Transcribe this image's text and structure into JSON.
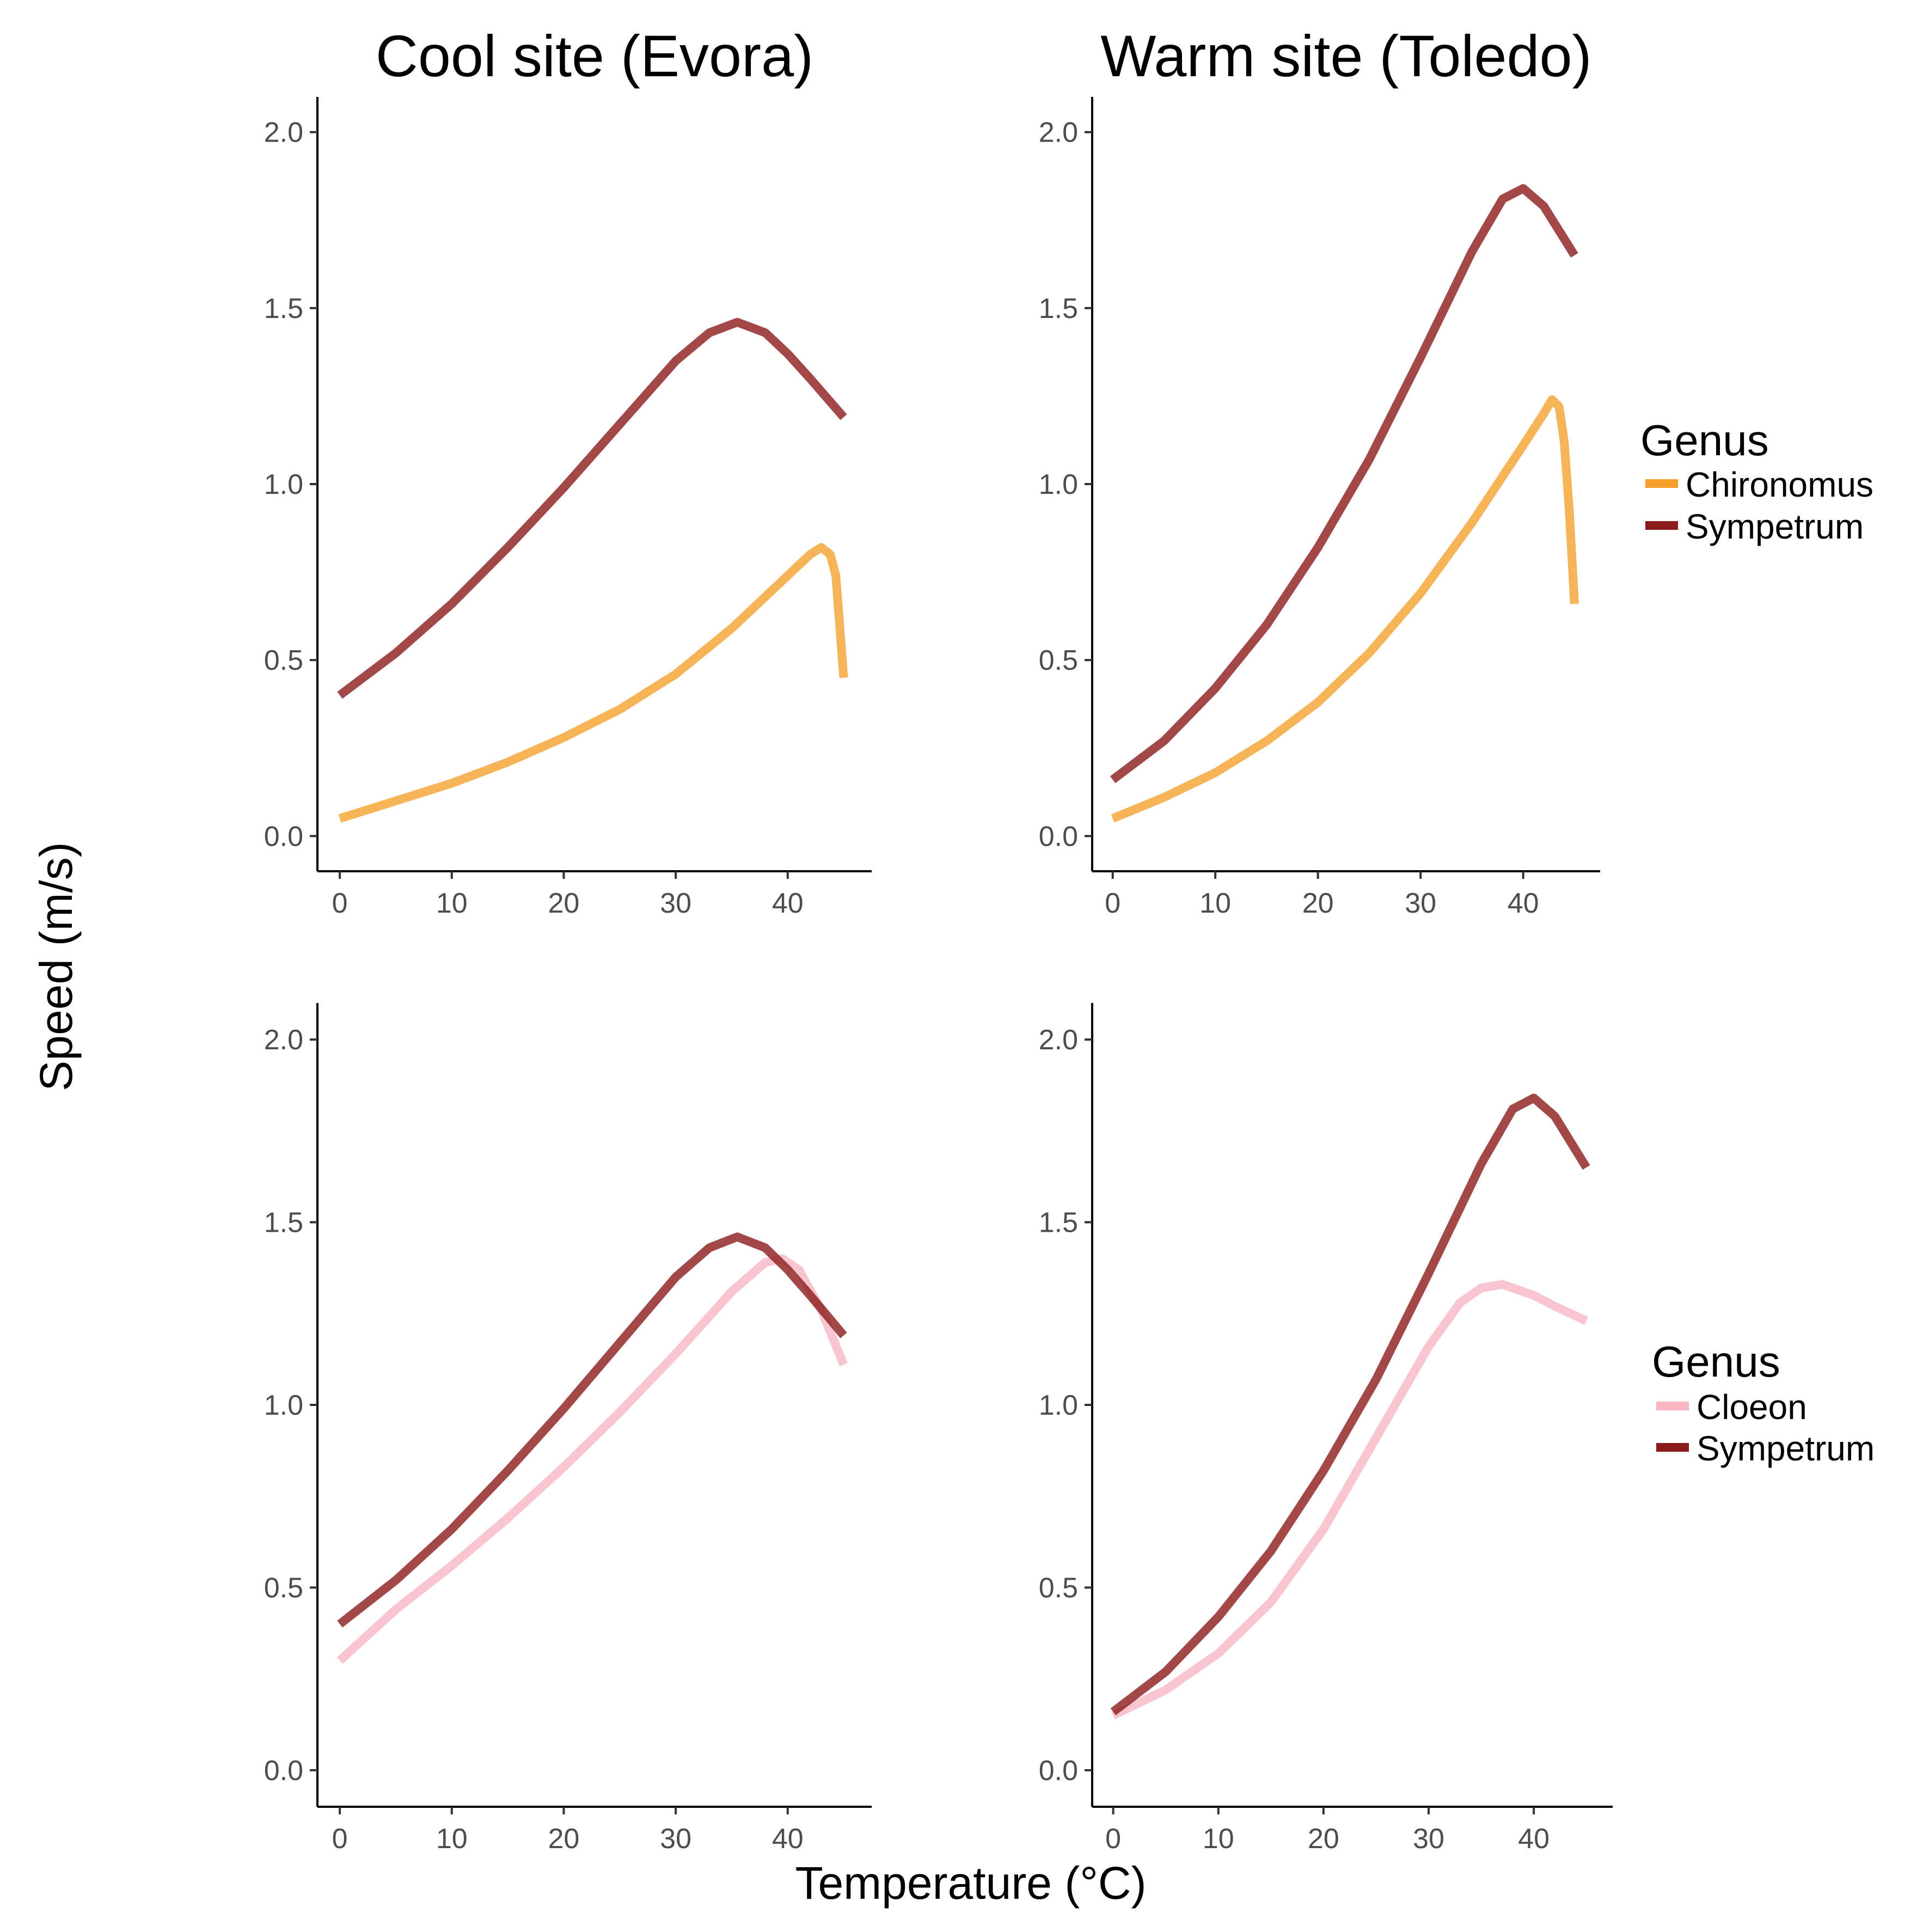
{
  "figure": {
    "ylabel": "Speed (m/s)",
    "xlabel": "Temperature (°C)"
  },
  "legends": [
    {
      "title": "Genus",
      "items": [
        {
          "label": "Chironomus",
          "color": "#f5a02e"
        },
        {
          "label": "Sympetrum",
          "color": "#8b1a1a"
        }
      ]
    },
    {
      "title": "Genus",
      "items": [
        {
          "label": "Cloeon",
          "color": "#f7b6c2"
        },
        {
          "label": "Sympetrum",
          "color": "#8b1a1a"
        }
      ]
    }
  ],
  "chart_data": [
    {
      "type": "line",
      "title": "Cool site (Evora)",
      "xlim": [
        -2,
        47.5
      ],
      "ylim": [
        -0.1,
        2.1
      ],
      "xticks": [
        "0",
        "10",
        "20",
        "30",
        "40"
      ],
      "yticks": [
        "0.0",
        "0.5",
        "1.0",
        "1.5",
        "2.0"
      ],
      "series": [
        {
          "name": "Chironomus",
          "color": "#f5a02e",
          "alpha": 0.8,
          "x": [
            0,
            5,
            10,
            15,
            20,
            25,
            30,
            35,
            40,
            42,
            43,
            43.8,
            44.3,
            45
          ],
          "y": [
            0.05,
            0.1,
            0.15,
            0.21,
            0.28,
            0.36,
            0.46,
            0.59,
            0.74,
            0.8,
            0.82,
            0.8,
            0.74,
            0.45
          ]
        },
        {
          "name": "Sympetrum",
          "color": "#8b1a1a",
          "alpha": 0.8,
          "x": [
            0,
            5,
            10,
            15,
            20,
            25,
            30,
            33,
            35.5,
            38,
            40,
            42,
            45
          ],
          "y": [
            0.4,
            0.52,
            0.66,
            0.82,
            0.99,
            1.17,
            1.35,
            1.43,
            1.46,
            1.43,
            1.37,
            1.3,
            1.19
          ]
        }
      ]
    },
    {
      "type": "line",
      "title": "Warm site (Toledo)",
      "xlim": [
        -2,
        47.5
      ],
      "ylim": [
        -0.1,
        2.1
      ],
      "xticks": [
        "0",
        "10",
        "20",
        "30",
        "40"
      ],
      "yticks": [
        "0.0",
        "0.5",
        "1.0",
        "1.5",
        "2.0"
      ],
      "series": [
        {
          "name": "Chironomus",
          "color": "#f5a02e",
          "alpha": 0.8,
          "x": [
            0,
            5,
            10,
            15,
            20,
            25,
            30,
            35,
            40,
            42,
            42.8,
            43.5,
            44,
            44.5,
            45
          ],
          "y": [
            0.05,
            0.11,
            0.18,
            0.27,
            0.38,
            0.52,
            0.69,
            0.89,
            1.11,
            1.2,
            1.24,
            1.22,
            1.12,
            0.92,
            0.66
          ]
        },
        {
          "name": "Sympetrum",
          "color": "#8b1a1a",
          "alpha": 0.8,
          "x": [
            0,
            5,
            10,
            15,
            20,
            25,
            30,
            35,
            38,
            40,
            42,
            45
          ],
          "y": [
            0.16,
            0.27,
            0.42,
            0.6,
            0.82,
            1.07,
            1.36,
            1.66,
            1.81,
            1.84,
            1.79,
            1.65
          ]
        }
      ]
    },
    {
      "type": "line",
      "title": "",
      "xlim": [
        -2,
        47.5
      ],
      "ylim": [
        -0.1,
        2.1
      ],
      "xticks": [
        "0",
        "10",
        "20",
        "30",
        "40"
      ],
      "yticks": [
        "0.0",
        "0.5",
        "1.0",
        "1.5",
        "2.0"
      ],
      "series": [
        {
          "name": "Cloeon",
          "color": "#f7b6c2",
          "alpha": 0.8,
          "x": [
            0,
            5,
            10,
            15,
            20,
            25,
            30,
            35,
            38,
            39.5,
            41,
            43,
            45
          ],
          "y": [
            0.3,
            0.44,
            0.56,
            0.69,
            0.83,
            0.98,
            1.14,
            1.31,
            1.39,
            1.4,
            1.37,
            1.26,
            1.11
          ]
        },
        {
          "name": "Sympetrum",
          "color": "#8b1a1a",
          "alpha": 0.8,
          "x": [
            0,
            5,
            10,
            15,
            20,
            25,
            30,
            33,
            35.5,
            38,
            40,
            42,
            45
          ],
          "y": [
            0.4,
            0.52,
            0.66,
            0.82,
            0.99,
            1.17,
            1.35,
            1.43,
            1.46,
            1.43,
            1.37,
            1.3,
            1.19
          ]
        }
      ]
    },
    {
      "type": "line",
      "title": "",
      "xlim": [
        -2,
        47.5
      ],
      "ylim": [
        -0.1,
        2.1
      ],
      "xticks": [
        "0",
        "10",
        "20",
        "30",
        "40"
      ],
      "yticks": [
        "0.0",
        "0.5",
        "1.0",
        "1.5",
        "2.0"
      ],
      "series": [
        {
          "name": "Cloeon",
          "color": "#f7b6c2",
          "alpha": 0.8,
          "x": [
            0,
            5,
            10,
            15,
            20,
            25,
            30,
            33,
            35,
            37,
            40,
            42,
            45
          ],
          "y": [
            0.15,
            0.22,
            0.32,
            0.46,
            0.66,
            0.91,
            1.16,
            1.28,
            1.32,
            1.33,
            1.3,
            1.27,
            1.23
          ]
        },
        {
          "name": "Sympetrum",
          "color": "#8b1a1a",
          "alpha": 0.8,
          "x": [
            0,
            5,
            10,
            15,
            20,
            25,
            30,
            35,
            38,
            40,
            42,
            45
          ],
          "y": [
            0.16,
            0.27,
            0.42,
            0.6,
            0.82,
            1.07,
            1.36,
            1.66,
            1.81,
            1.84,
            1.79,
            1.65
          ]
        }
      ]
    }
  ]
}
